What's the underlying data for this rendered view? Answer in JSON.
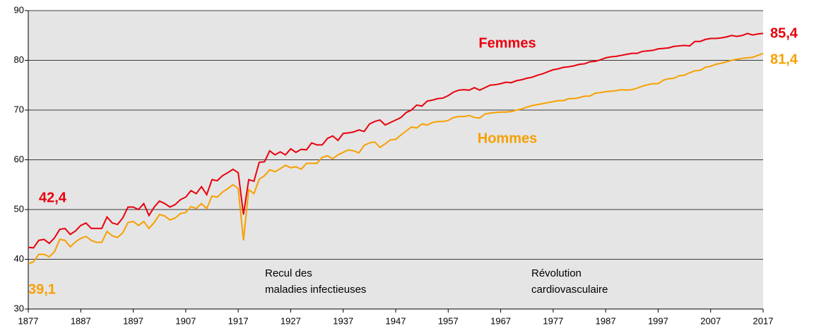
{
  "chart_data": {
    "type": "line",
    "x": [
      1877,
      1878,
      1879,
      1880,
      1881,
      1882,
      1883,
      1884,
      1885,
      1886,
      1887,
      1888,
      1889,
      1890,
      1891,
      1892,
      1893,
      1894,
      1895,
      1896,
      1897,
      1898,
      1899,
      1900,
      1901,
      1902,
      1903,
      1904,
      1905,
      1906,
      1907,
      1908,
      1909,
      1910,
      1911,
      1912,
      1913,
      1914,
      1915,
      1916,
      1917,
      1918,
      1919,
      1920,
      1921,
      1922,
      1923,
      1924,
      1925,
      1926,
      1927,
      1928,
      1929,
      1930,
      1931,
      1932,
      1933,
      1934,
      1935,
      1936,
      1937,
      1938,
      1939,
      1940,
      1941,
      1942,
      1943,
      1944,
      1945,
      1946,
      1947,
      1948,
      1949,
      1950,
      1951,
      1952,
      1953,
      1954,
      1955,
      1956,
      1957,
      1958,
      1959,
      1960,
      1961,
      1962,
      1963,
      1964,
      1965,
      1966,
      1967,
      1968,
      1969,
      1970,
      1971,
      1972,
      1973,
      1974,
      1975,
      1976,
      1977,
      1978,
      1979,
      1980,
      1981,
      1982,
      1983,
      1984,
      1985,
      1986,
      1987,
      1988,
      1989,
      1990,
      1991,
      1992,
      1993,
      1994,
      1995,
      1996,
      1997,
      1998,
      1999,
      2000,
      2001,
      2002,
      2003,
      2004,
      2005,
      2006,
      2007,
      2008,
      2009,
      2010,
      2011,
      2012,
      2013,
      2014,
      2015,
      2016,
      2017
    ],
    "series": [
      {
        "name": "Femmes",
        "color": "#e8000d",
        "values": [
          42.4,
          42.3,
          43.8,
          44.0,
          43.2,
          44.3,
          46.0,
          46.2,
          45.0,
          45.7,
          46.8,
          47.3,
          46.2,
          46.2,
          46.2,
          48.5,
          47.3,
          47.0,
          48.3,
          50.5,
          50.5,
          50.0,
          51.2,
          48.8,
          50.5,
          51.7,
          51.2,
          50.5,
          51.0,
          52.0,
          52.5,
          53.8,
          53.2,
          54.6,
          53.0,
          56.0,
          55.8,
          56.8,
          57.4,
          58.1,
          57.4,
          49.0,
          56.0,
          55.7,
          59.5,
          59.6,
          61.8,
          61.0,
          61.6,
          61.0,
          62.2,
          61.5,
          62.1,
          62.0,
          63.4,
          63.0,
          63.0,
          64.3,
          64.8,
          63.9,
          65.3,
          65.4,
          65.6,
          66.0,
          65.7,
          67.2,
          67.7,
          68.0,
          67.0,
          67.5,
          68.0,
          68.5,
          69.5,
          70.0,
          71.0,
          70.8,
          71.8,
          72.0,
          72.3,
          72.4,
          72.9,
          73.6,
          74.0,
          74.1,
          74.0,
          74.5,
          74.0,
          74.5,
          75.0,
          75.1,
          75.3,
          75.6,
          75.5,
          75.9,
          76.1,
          76.4,
          76.6,
          77.0,
          77.3,
          77.7,
          78.1,
          78.3,
          78.6,
          78.7,
          78.9,
          79.2,
          79.3,
          79.7,
          79.8,
          80.1,
          80.5,
          80.7,
          80.8,
          81.0,
          81.2,
          81.4,
          81.4,
          81.8,
          81.9,
          82.0,
          82.3,
          82.4,
          82.5,
          82.8,
          82.9,
          83.0,
          82.9,
          83.8,
          83.8,
          84.2,
          84.4,
          84.4,
          84.5,
          84.7,
          85.0,
          84.8,
          85.0,
          85.4,
          85.1,
          85.3,
          85.4
        ],
        "value_labels": {
          "0": "42,4",
          "140": "85,4"
        }
      },
      {
        "name": "Hommes",
        "color": "#f7a000",
        "values": [
          39.1,
          39.5,
          41.0,
          41.0,
          40.5,
          41.5,
          44.0,
          43.8,
          42.5,
          43.5,
          44.2,
          44.6,
          43.8,
          43.4,
          43.4,
          45.6,
          44.7,
          44.4,
          45.3,
          47.4,
          47.6,
          46.8,
          47.6,
          46.2,
          47.4,
          49.0,
          48.7,
          47.9,
          48.3,
          49.2,
          49.4,
          50.6,
          50.2,
          51.2,
          50.2,
          52.7,
          52.5,
          53.5,
          54.2,
          55.0,
          54.2,
          43.8,
          54.0,
          53.2,
          56.1,
          56.8,
          58.0,
          57.6,
          58.2,
          58.9,
          58.4,
          58.6,
          58.1,
          59.3,
          59.3,
          59.3,
          60.5,
          60.8,
          60.2,
          61.0,
          61.5,
          62.0,
          61.8,
          61.4,
          62.9,
          63.4,
          63.6,
          62.5,
          63.2,
          64.0,
          64.1,
          65.0,
          65.8,
          66.6,
          66.4,
          67.2,
          67.0,
          67.5,
          67.7,
          67.7,
          67.9,
          68.5,
          68.7,
          68.7,
          68.9,
          68.5,
          68.4,
          69.2,
          69.4,
          69.5,
          69.6,
          69.6,
          69.7,
          70.0,
          70.2,
          70.6,
          70.9,
          71.1,
          71.3,
          71.5,
          71.7,
          71.9,
          71.9,
          72.3,
          72.3,
          72.5,
          72.8,
          72.8,
          73.4,
          73.5,
          73.7,
          73.8,
          73.9,
          74.1,
          74.0,
          74.1,
          74.4,
          74.8,
          75.1,
          75.3,
          75.3,
          76.0,
          76.3,
          76.4,
          76.9,
          77.0,
          77.5,
          77.9,
          78.0,
          78.6,
          78.8,
          79.2,
          79.4,
          79.7,
          80.0,
          80.2,
          80.4,
          80.5,
          80.6,
          81.0,
          81.4
        ],
        "value_labels": {
          "0": "39,1",
          "140": "81,4"
        }
      }
    ],
    "xlim": [
      1877,
      2017
    ],
    "xticks": [
      1877,
      1887,
      1897,
      1907,
      1917,
      1927,
      1937,
      1947,
      1957,
      1967,
      1977,
      1987,
      1997,
      2007,
      2017
    ],
    "ylim": [
      30,
      90
    ],
    "yticks": [
      30,
      40,
      50,
      60,
      70,
      80,
      90
    ],
    "grid": true,
    "annotations": [
      {
        "lines": [
          "Recul des",
          "maladies infectieuses"
        ]
      },
      {
        "lines": [
          "Révolution",
          "cardiovasculaire"
        ]
      }
    ]
  }
}
